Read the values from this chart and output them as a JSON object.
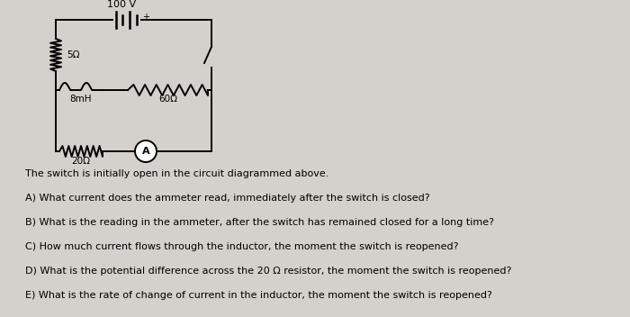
{
  "bg_color": "#d4d0cb",
  "text_color": "#000000",
  "title_voltage": "100 V",
  "label_5ohm": "5Ω",
  "label_8mH": "8mH",
  "label_60ohm": "60Ω",
  "label_20ohm": "20Ω",
  "ammeter_label": "A",
  "questions": [
    "The switch is initially open in the circuit diagrammed above.",
    "A) What current does the ammeter read, immediately after the switch is closed?",
    "B) What is the reading in the ammeter, after the switch has remained closed for a long time?",
    "C) How much current flows through the inductor, the moment the switch is reopened?",
    "D) What is the potential difference across the 20 Ω resistor, the moment the switch is reopened?",
    "E) What is the rate of change of current in the inductor, the moment the switch is reopened?"
  ],
  "font_size_questions": 8.0,
  "font_size_labels": 7.5,
  "font_size_voltage": 8.0
}
